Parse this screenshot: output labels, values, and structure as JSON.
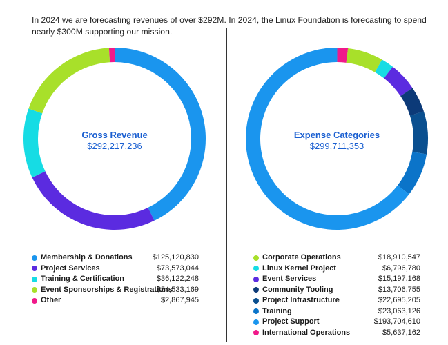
{
  "intro_text": "In 2024 we are forecasting revenues of over $292M. In 2024, the Linux Foundation is forecasting to spend nearly $300M supporting our mission.",
  "chart_data": [
    {
      "type": "pie",
      "variant": "donut",
      "title": "Gross Revenue",
      "total_label": "$292,217,236",
      "slices": [
        {
          "label": "Membership & Donations",
          "value": 125120830,
          "display": "$125,120,830",
          "color": "#1a95ee"
        },
        {
          "label": "Project Services",
          "value": 73573044,
          "display": "$73,573,044",
          "color": "#5b2be0"
        },
        {
          "label": "Training & Certification",
          "value": 36122248,
          "display": "$36,122,248",
          "color": "#16dce4"
        },
        {
          "label": "Event Sponsorships & Registrations",
          "value": 54533169,
          "display": "$54,533,169",
          "color": "#a8e02a"
        },
        {
          "label": "Other",
          "value": 2867945,
          "display": "$2,867,945",
          "color": "#f0198a"
        }
      ]
    },
    {
      "type": "pie",
      "variant": "donut",
      "title": "Expense Categories",
      "total_label": "$299,711,353",
      "slices": [
        {
          "label": "Corporate Operations",
          "value": 18910547,
          "display": "$18,910,547",
          "color": "#a8e02a"
        },
        {
          "label": "Linux Kernel Project",
          "value": 6796780,
          "display": "$6,796,780",
          "color": "#16dce4"
        },
        {
          "label": "Event Services",
          "value": 15197168,
          "display": "$15,197,168",
          "color": "#5b2be0"
        },
        {
          "label": "Community Tooling",
          "value": 13706755,
          "display": "$13,706,755",
          "color": "#0c3a78"
        },
        {
          "label": "Project Infrastructure",
          "value": 22695205,
          "display": "$22,695,205",
          "color": "#0a4f8f"
        },
        {
          "label": "Training",
          "value": 23063126,
          "display": "$23,063,126",
          "color": "#0b74c9"
        },
        {
          "label": "Project Support",
          "value": 193704610,
          "display": "$193,704,610",
          "color": "#1a95ee"
        },
        {
          "label": "International Operations",
          "value": 5637162,
          "display": "$5,637,162",
          "color": "#f0198a"
        }
      ]
    }
  ]
}
